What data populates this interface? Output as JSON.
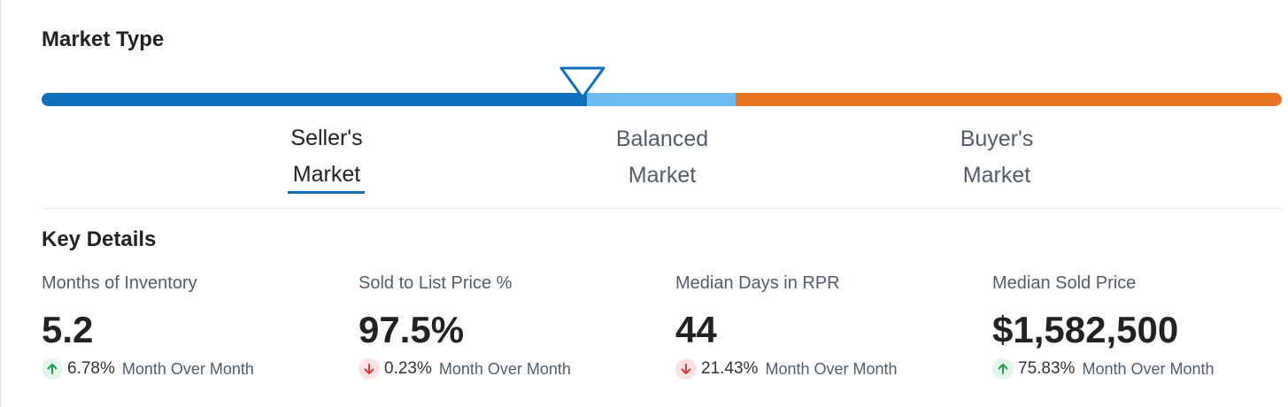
{
  "market_type": {
    "title": "Market Type",
    "labels": {
      "sellers": [
        "Seller's",
        "Market"
      ],
      "balanced": [
        "Balanced",
        "Market"
      ],
      "buyers": [
        "Buyer's",
        "Market"
      ]
    },
    "active": "sellers",
    "indicator_position_fraction": 0.435,
    "colors": {
      "sellers": "#0e6fba",
      "balanced": "#6cbcf3",
      "buyers": "#ec7426"
    }
  },
  "key_details": {
    "title": "Key Details",
    "metrics": [
      {
        "label": "Months of Inventory",
        "value": "5.2",
        "direction": "up",
        "arrow_icon": "arrow-up-icon",
        "change": "6.78%",
        "period": "Month Over Month"
      },
      {
        "label": "Sold to List Price %",
        "value": "97.5%",
        "direction": "down",
        "arrow_icon": "arrow-down-icon",
        "change": "0.23%",
        "period": "Month Over Month"
      },
      {
        "label": "Median Days in RPR",
        "value": "44",
        "direction": "down",
        "arrow_icon": "arrow-down-icon",
        "change": "21.43%",
        "period": "Month Over Month"
      },
      {
        "label": "Median Sold Price",
        "value": "$1,582,500",
        "direction": "up",
        "arrow_icon": "arrow-up-icon",
        "change": "75.83%",
        "period": "Month Over Month"
      }
    ],
    "colors": {
      "up_arrow": "#1e9e4a",
      "down_arrow": "#d43a3a"
    }
  }
}
